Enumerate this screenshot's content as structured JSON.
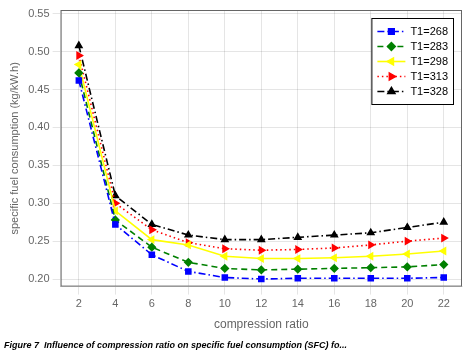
{
  "chart_data": {
    "type": "line",
    "x": [
      2,
      4,
      6,
      8,
      10,
      12,
      14,
      16,
      18,
      20,
      22
    ],
    "series": [
      {
        "name": "T1=268",
        "color": "#0000ff",
        "marker": "square",
        "line_style": "dashdot",
        "values": [
          0.462,
          0.272,
          0.232,
          0.21,
          0.202,
          0.2,
          0.201,
          0.201,
          0.201,
          0.201,
          0.202
        ]
      },
      {
        "name": "T1=283",
        "color": "#008000",
        "marker": "diamond",
        "line_style": "dashed",
        "values": [
          0.472,
          0.278,
          0.242,
          0.222,
          0.214,
          0.212,
          0.213,
          0.214,
          0.215,
          0.216,
          0.219
        ]
      },
      {
        "name": "T1=298",
        "color": "#ffff00",
        "marker": "triangle-left",
        "line_style": "solid",
        "values": [
          0.483,
          0.29,
          0.252,
          0.245,
          0.23,
          0.227,
          0.227,
          0.228,
          0.23,
          0.233,
          0.237
        ]
      },
      {
        "name": "T1=313",
        "color": "#ff0000",
        "marker": "triangle-right",
        "line_style": "dotted",
        "values": [
          0.495,
          0.3,
          0.265,
          0.248,
          0.24,
          0.238,
          0.239,
          0.241,
          0.245,
          0.25,
          0.254
        ]
      },
      {
        "name": "T1=328",
        "color": "#000000",
        "marker": "triangle-up",
        "line_style": "dashdot",
        "values": [
          0.508,
          0.31,
          0.272,
          0.258,
          0.252,
          0.252,
          0.255,
          0.258,
          0.261,
          0.268,
          0.275
        ]
      }
    ],
    "xlabel": "compression ratio",
    "ylabel": "specific fuel consumption (kg/kW.h)",
    "caption": "Figure 7  Influence of compression ratio on specific fuel consumption (SFC) fo...",
    "xlim": [
      1,
      23
    ],
    "ylim": [
      0.19,
      0.555
    ],
    "xticks": [
      2,
      4,
      6,
      8,
      10,
      12,
      14,
      16,
      18,
      20,
      22
    ],
    "yticks": [
      {
        "value": 0.2,
        "label": "0.20"
      },
      0.25,
      {
        "value": 0.3,
        "label": "0.30"
      },
      0.35,
      {
        "value": 0.4,
        "label": "0.40"
      },
      0.45,
      {
        "value": 0.5,
        "label": "0.50"
      },
      0.55
    ],
    "grid": true,
    "legend": "upper right"
  }
}
